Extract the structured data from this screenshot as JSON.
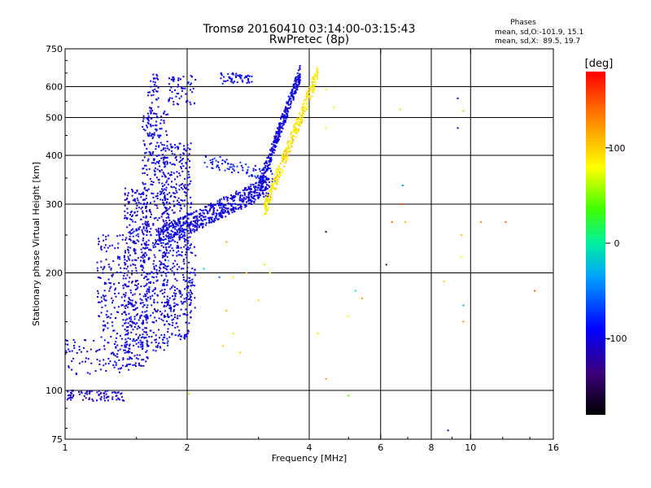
{
  "chart_data": {
    "type": "scatter",
    "title": "Tromsø 20160410 03:14:00-03:15:43",
    "subtitle": "RwPretec (8p)",
    "xlabel": "Frequency [MHz]",
    "ylabel": "Stationary phase Virtual Height [km]",
    "x_scale": "log",
    "y_scale": "log",
    "xlim": [
      1,
      16
    ],
    "ylim": [
      75,
      750
    ],
    "x_ticks": [
      1,
      2,
      4,
      6,
      8,
      10,
      16
    ],
    "y_ticks": [
      75,
      100,
      200,
      300,
      400,
      500,
      600,
      750
    ],
    "grid": true,
    "phase_legend": {
      "title": "Phases",
      "line1": "mean, sd,O:-101.9, 15.1",
      "line2": "mean, sd,X:  89.5, 19.7"
    },
    "colorbar": {
      "label": "[deg]",
      "range": [
        -180,
        180
      ],
      "ticks": [
        100,
        0,
        -100
      ]
    },
    "regions": [
      {
        "x": [
          1.0,
          1.4
        ],
        "y": [
          94,
          100
        ],
        "phase": -110,
        "count": 80
      },
      {
        "x": [
          1.0,
          1.2
        ],
        "y": [
          110,
          135
        ],
        "phase": -105,
        "count": 40
      },
      {
        "x": [
          1.2,
          1.45
        ],
        "y": [
          110,
          250
        ],
        "phase": -100,
        "count": 220
      },
      {
        "x": [
          1.4,
          1.6
        ],
        "y": [
          115,
          330
        ],
        "phase": -102,
        "count": 380
      },
      {
        "x": [
          1.55,
          1.8
        ],
        "y": [
          125,
          520
        ],
        "phase": -100,
        "count": 450
      },
      {
        "x": [
          1.6,
          1.7
        ],
        "y": [
          440,
          650
        ],
        "phase": -98,
        "count": 60
      },
      {
        "x": [
          1.75,
          2.05
        ],
        "y": [
          135,
          430
        ],
        "phase": -100,
        "count": 420
      },
      {
        "x": [
          1.8,
          2.1
        ],
        "y": [
          540,
          640
        ],
        "phase": -100,
        "count": 60
      },
      {
        "x": [
          2.4,
          2.9
        ],
        "y": [
          610,
          650
        ],
        "phase": -95,
        "count": 50
      },
      {
        "x": [
          2.0,
          2.1
        ],
        "y": [
          150,
          240
        ],
        "phase": -100,
        "count": 35
      }
    ],
    "band_o": {
      "x_start": 1.7,
      "x_end": 3.2,
      "y_start": 245,
      "y_end": 335,
      "width": 0.06,
      "phase": -100,
      "count": 550
    },
    "band_o_upper": {
      "x_start": 2.2,
      "x_end": 3.3,
      "y_start": 390,
      "y_end": 355,
      "width": 0.04,
      "phase": -85,
      "count": 80
    },
    "wall_o": {
      "x_start": 3.0,
      "x_end": 3.8,
      "y_start": 330,
      "y_end": 650,
      "width": 0.05,
      "phase": -102,
      "count": 350
    },
    "wall_x": {
      "x_start": 3.1,
      "x_end": 4.2,
      "y_start": 290,
      "y_end": 650,
      "width": 0.05,
      "phase": 90,
      "count": 320
    },
    "scattered": [
      [
        4.4,
        590,
        85
      ],
      [
        4.4,
        470,
        75
      ],
      [
        4.4,
        255,
        -160
      ],
      [
        4.4,
        107,
        120
      ],
      [
        4.2,
        140,
        90
      ],
      [
        4.6,
        530,
        90
      ],
      [
        5.0,
        155,
        90
      ],
      [
        5.0,
        97,
        40
      ],
      [
        5.2,
        180,
        -5
      ],
      [
        5.4,
        172,
        120
      ],
      [
        6.2,
        210,
        -130
      ],
      [
        6.4,
        270,
        140
      ],
      [
        6.7,
        525,
        100
      ],
      [
        6.8,
        335,
        -40
      ],
      [
        6.8,
        300,
        150
      ],
      [
        6.9,
        270,
        110
      ],
      [
        8.6,
        190,
        100
      ],
      [
        9.3,
        560,
        -90
      ],
      [
        9.3,
        470,
        -100
      ],
      [
        9.6,
        520,
        110
      ],
      [
        9.5,
        250,
        110
      ],
      [
        9.5,
        220,
        80
      ],
      [
        9.6,
        165,
        -30
      ],
      [
        9.6,
        150,
        130
      ],
      [
        8.8,
        79,
        -110
      ],
      [
        10.6,
        270,
        130
      ],
      [
        12.2,
        270,
        140
      ],
      [
        14.4,
        180,
        150
      ],
      [
        2.5,
        160,
        110
      ],
      [
        2.6,
        140,
        90
      ],
      [
        2.7,
        125,
        100
      ],
      [
        2.5,
        240,
        120
      ],
      [
        2.6,
        195,
        90
      ],
      [
        3.0,
        170,
        100
      ],
      [
        3.1,
        210,
        100
      ],
      [
        2.4,
        195,
        -60
      ],
      [
        2.2,
        205,
        -20
      ],
      [
        3.2,
        200,
        90
      ],
      [
        2.8,
        200,
        110
      ],
      [
        2.45,
        130,
        100
      ],
      [
        1.8,
        215,
        -30
      ],
      [
        1.72,
        228,
        -40
      ],
      [
        2.02,
        98,
        100
      ],
      [
        1.65,
        235,
        -60
      ]
    ]
  }
}
